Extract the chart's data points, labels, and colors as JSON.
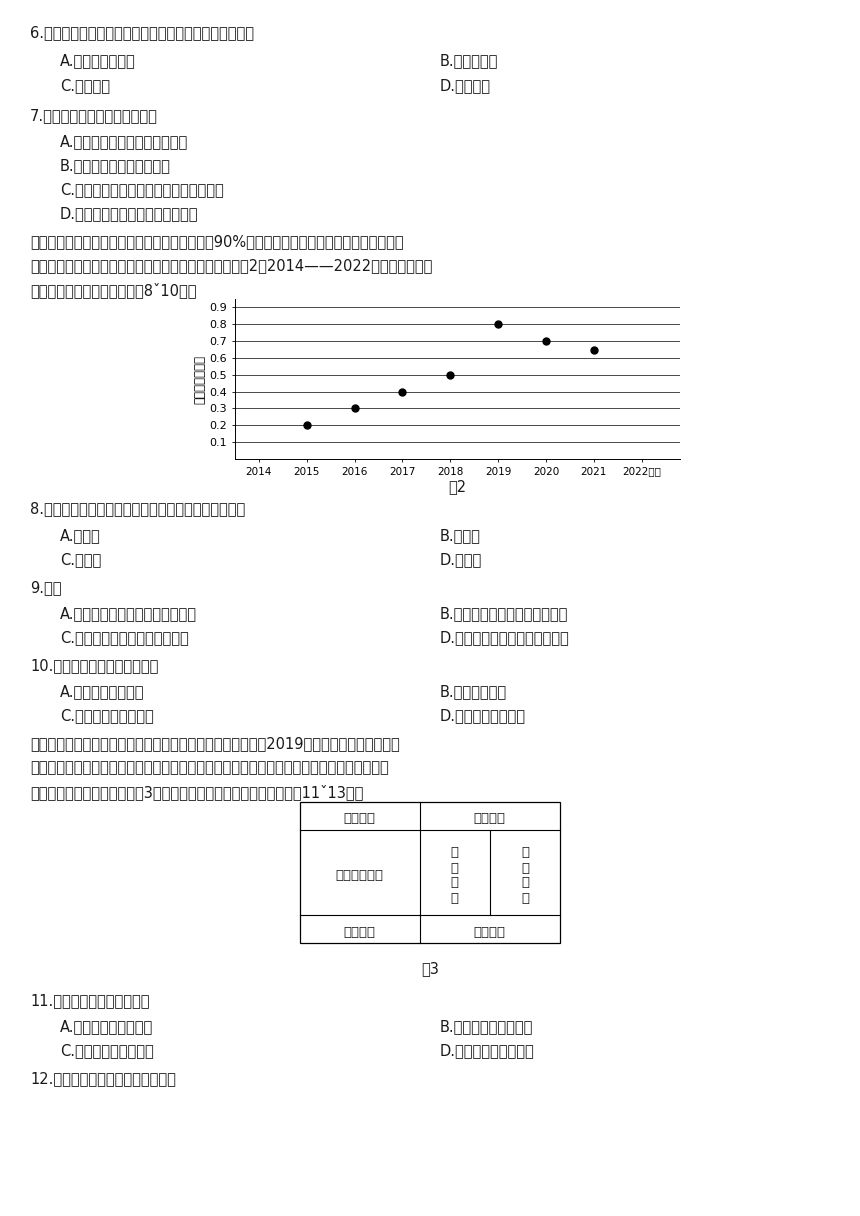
{
  "background_color": "#ffffff",
  "page_width": 8.6,
  "page_height": 12.16,
  "text_color": "#1a1a1a",
  "q6_text": "6.蒙古首都乌兰巴托能聚集全国近一半人口的主要原因是",
  "q6_a": "A.经济发展水平高",
  "q6_b": "B.土地肥力高",
  "q6_c": "C.气候适宜",
  "q6_d": "D.文化吸引",
  "q7_text": "7.关于蒙古，以下说法正确的是",
  "q7_a": "A.乌兰巴托以蒙古包为主要建筑",
  "q7_b": "B.人口容量受到气候的制约",
  "q7_c": "C.以畜牧业为主，人口迁移多为放牧流动",
  "q7_d": "D.畜牧造成生态破坏，应种养结合",
  "para1": "　　环县位于陕甘宁三省区交界地区，全县有约90%以上的地方被黄土覆盖，多高山、地沟。",
  "para2": "该地气候多风、干燥、旱、雹、风、冻、虫五灾俱全。图2为2014——2022年环县人口资源",
  "para3": "承载力指数变化图。据此完成8ˇ10题。",
  "chart_years": [
    2014,
    2015,
    2016,
    2017,
    2018,
    2019,
    2020,
    2021,
    2022
  ],
  "chart_values": [
    null,
    0.2,
    0.3,
    0.4,
    0.5,
    0.8,
    0.7,
    0.65,
    null
  ],
  "chart_ylim": [
    0,
    0.95
  ],
  "chart_yticks": [
    0.1,
    0.2,
    0.3,
    0.4,
    0.5,
    0.6,
    0.7,
    0.8,
    0.9
  ],
  "chart_ylabel": "资源承载力指数",
  "chart_caption": "图2",
  "q8_text": "8.环县资源承载力各时期的变化体现出资源承载力具有",
  "q8_a": "A.临界性",
  "q8_b": "B.警戒性",
  "q8_c": "C.差异性",
  "q8_d": "D.相对性",
  "q9_text": "9.环县",
  "q9_a": "A.以高寒气候为主，环境承载力低",
  "q9_b": "B.自然灾害频发，环境承载力低",
  "q9_c": "C.地势起伏较大，环境承载力高",
  "q9_d": "D.水资源较充足，环境承载力高",
  "q10_text": "10.为提高资源承载力，环县应",
  "q10_a": "A.发展高新技术产业",
  "q10_b": "B.鼓励人口外迁",
  "q10_c": "C.退耕还林，保持水土",
  "q10_d": "D.禁止自然资源开发",
  "para4": "　　卢屋村位于赣江支流沿岸，至今仍有上万卢氏族人居住。2019年，卢屋村被列入第五批",
  "para5": "中国传统村落名录，卢氏宗祠是该村古建筑的代表，其空间利用在不同年代有所变迁，现代宗",
  "para6": "祠成为村内多功能公共区。图3示意卢氏宗祠现代空间布局。据此完成11ˇ13题。",
  "fig3_caption": "图3",
  "table_top_left": "祭祀展陈",
  "table_top_right": "储物功能",
  "table_mid_left": "宗族文化展示",
  "table_mid_mid": "仪\n式\n功\n能",
  "table_mid_right": "祭\n祀\n展\n陈",
  "table_bot_left": "祭祀展陈",
  "table_bot_right": "储物功能",
  "q11_text": "11.推测早期宗祠位于村落的",
  "q11_a": "A.边缘，发挥防卫功能",
  "q11_b": "B.中部，便于宗亲聚集",
  "q11_c": "C.边缘，兼顾农事活动",
  "q11_d": "D.中部，执行宗族制度",
  "q12_text": "12.宗祠的建立和保存体现出当地的"
}
